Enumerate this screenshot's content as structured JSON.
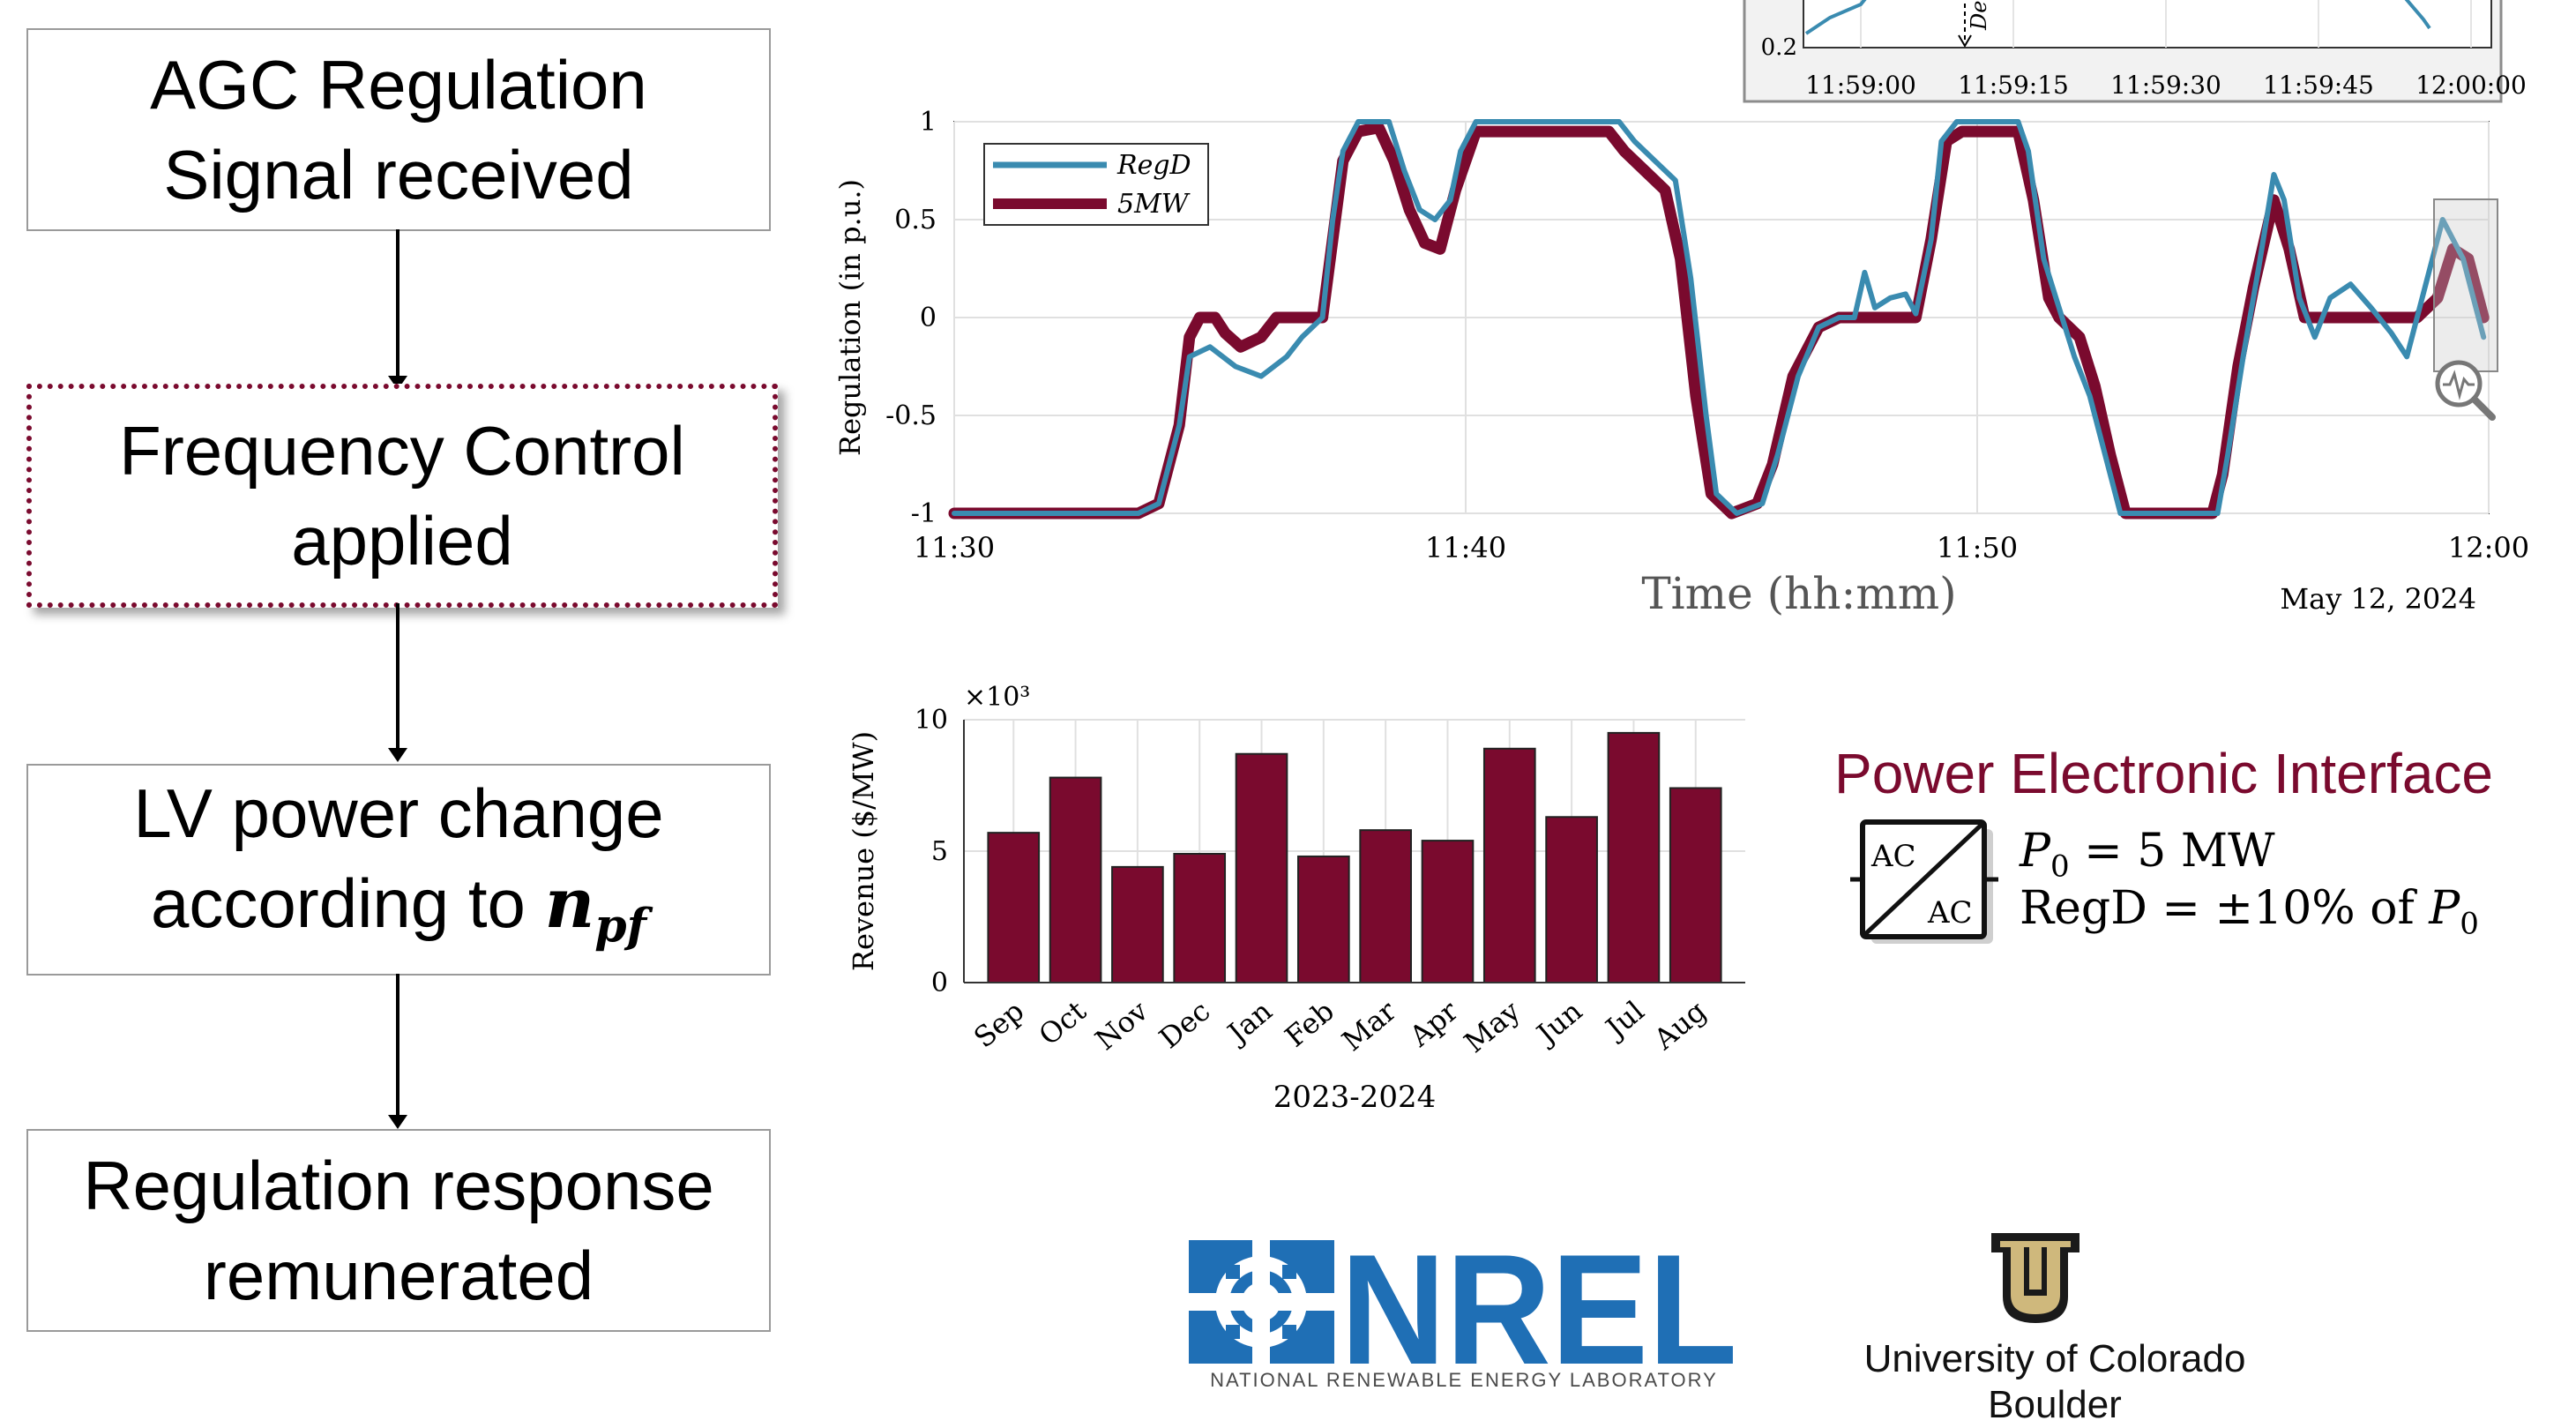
{
  "flowchart": {
    "steps": [
      {
        "line1": "AGC Regulation",
        "line2": "Signal received"
      },
      {
        "line1": "Frequency Control",
        "line2": "applied"
      },
      {
        "line1": "LV power change",
        "line2": "according to ",
        "math": "n",
        "math_sub": "pf"
      },
      {
        "line1": "Regulation response",
        "line2": "remunerated"
      }
    ]
  },
  "chart_data": [
    {
      "type": "line",
      "ylabel": "Regulation (in p.u.)",
      "xlabel": "Time (hh:mm)",
      "date_label": "May 12, 2024",
      "x_ticks": [
        "11:30",
        "11:40",
        "11:50",
        "12:00"
      ],
      "y_ticks": [
        "-1",
        "-0.5",
        "0",
        "0.5",
        "1"
      ],
      "ylim": [
        -1,
        1
      ],
      "xlim_minutes": [
        0,
        30
      ],
      "grid": true,
      "legend_position": "top-left",
      "series": [
        {
          "name": "RegD",
          "color": "#3a8bb0",
          "points": [
            [
              0,
              -1
            ],
            [
              3.6,
              -1
            ],
            [
              4,
              -0.95
            ],
            [
              4.4,
              -0.55
            ],
            [
              4.6,
              -0.2
            ],
            [
              5,
              -0.15
            ],
            [
              5.5,
              -0.25
            ],
            [
              6,
              -0.3
            ],
            [
              6.5,
              -0.2
            ],
            [
              6.8,
              -0.1
            ],
            [
              7.2,
              0
            ],
            [
              7.4,
              0.5
            ],
            [
              7.6,
              0.85
            ],
            [
              7.9,
              1
            ],
            [
              8.5,
              1
            ],
            [
              8.8,
              0.75
            ],
            [
              9.1,
              0.55
            ],
            [
              9.4,
              0.5
            ],
            [
              9.7,
              0.6
            ],
            [
              9.9,
              0.85
            ],
            [
              10.2,
              1
            ],
            [
              13,
              1
            ],
            [
              13.3,
              0.9
            ],
            [
              13.7,
              0.8
            ],
            [
              14.1,
              0.7
            ],
            [
              14.4,
              0.2
            ],
            [
              14.7,
              -0.5
            ],
            [
              14.9,
              -0.9
            ],
            [
              15.3,
              -1
            ],
            [
              15.8,
              -0.95
            ],
            [
              16.1,
              -0.7
            ],
            [
              16.5,
              -0.3
            ],
            [
              16.9,
              -0.05
            ],
            [
              17.3,
              0
            ],
            [
              17.6,
              0
            ],
            [
              17.8,
              0.23
            ],
            [
              18,
              0.05
            ],
            [
              18.3,
              0.1
            ],
            [
              18.6,
              0.12
            ],
            [
              18.8,
              0.02
            ],
            [
              19.1,
              0.4
            ],
            [
              19.3,
              0.9
            ],
            [
              19.6,
              1
            ],
            [
              20.8,
              1
            ],
            [
              21,
              0.85
            ],
            [
              21.3,
              0.3
            ],
            [
              21.6,
              0.05
            ],
            [
              21.9,
              -0.2
            ],
            [
              22.2,
              -0.4
            ],
            [
              22.5,
              -0.7
            ],
            [
              22.8,
              -1
            ],
            [
              24.7,
              -1
            ],
            [
              24.9,
              -0.7
            ],
            [
              25.2,
              -0.2
            ],
            [
              25.5,
              0.25
            ],
            [
              25.8,
              0.73
            ],
            [
              26,
              0.6
            ],
            [
              26.3,
              0.1
            ],
            [
              26.6,
              -0.1
            ],
            [
              26.9,
              0.1
            ],
            [
              27.3,
              0.17
            ],
            [
              27.7,
              0.05
            ],
            [
              28.1,
              -0.08
            ],
            [
              28.4,
              -0.2
            ],
            [
              28.7,
              0.1
            ],
            [
              29.1,
              0.5
            ],
            [
              29.5,
              0.3
            ],
            [
              29.9,
              -0.1
            ]
          ]
        },
        {
          "name": "5MW",
          "color": "#7a0a2e",
          "points": [
            [
              0,
              -1
            ],
            [
              3.6,
              -1
            ],
            [
              4,
              -0.95
            ],
            [
              4.4,
              -0.55
            ],
            [
              4.6,
              -0.1
            ],
            [
              4.8,
              0
            ],
            [
              5.1,
              0
            ],
            [
              5.3,
              -0.08
            ],
            [
              5.6,
              -0.15
            ],
            [
              6,
              -0.1
            ],
            [
              6.3,
              0
            ],
            [
              7.2,
              0
            ],
            [
              7.4,
              0.4
            ],
            [
              7.6,
              0.8
            ],
            [
              7.9,
              0.95
            ],
            [
              8.3,
              0.97
            ],
            [
              8.6,
              0.8
            ],
            [
              8.9,
              0.55
            ],
            [
              9.2,
              0.38
            ],
            [
              9.5,
              0.35
            ],
            [
              9.8,
              0.65
            ],
            [
              10.2,
              0.95
            ],
            [
              12.8,
              0.95
            ],
            [
              13.1,
              0.85
            ],
            [
              13.5,
              0.75
            ],
            [
              13.9,
              0.65
            ],
            [
              14.2,
              0.3
            ],
            [
              14.5,
              -0.4
            ],
            [
              14.8,
              -0.9
            ],
            [
              15.2,
              -1
            ],
            [
              15.7,
              -0.95
            ],
            [
              16,
              -0.75
            ],
            [
              16.4,
              -0.3
            ],
            [
              16.9,
              -0.05
            ],
            [
              17.3,
              0
            ],
            [
              18.8,
              0
            ],
            [
              19.1,
              0.4
            ],
            [
              19.4,
              0.9
            ],
            [
              19.7,
              0.95
            ],
            [
              20.8,
              0.95
            ],
            [
              21.1,
              0.6
            ],
            [
              21.4,
              0.1
            ],
            [
              21.6,
              0
            ],
            [
              22,
              -0.1
            ],
            [
              22.3,
              -0.35
            ],
            [
              22.6,
              -0.7
            ],
            [
              22.9,
              -1
            ],
            [
              24.6,
              -1
            ],
            [
              24.8,
              -0.8
            ],
            [
              25.1,
              -0.25
            ],
            [
              25.4,
              0.15
            ],
            [
              25.8,
              0.6
            ],
            [
              26.1,
              0.35
            ],
            [
              26.4,
              0
            ],
            [
              28.6,
              0
            ],
            [
              29,
              0.1
            ],
            [
              29.3,
              0.35
            ],
            [
              29.6,
              0.3
            ],
            [
              29.9,
              0
            ]
          ]
        }
      ]
    },
    {
      "type": "line",
      "x_ticks": [
        "11:59:00",
        "11:59:15",
        "11:59:30",
        "11:59:45",
        "12:00:00"
      ],
      "y_ticks": [
        "0.2"
      ],
      "annotation": "De",
      "series": [
        {
          "name": "RegD",
          "color": "#3a8bb0"
        }
      ]
    },
    {
      "type": "bar",
      "ylabel": "Revenue ($/MW)",
      "xlabel": "2023-2024",
      "multiplier": "×10³",
      "y_ticks": [
        "0",
        "5",
        "10"
      ],
      "ylim": [
        0,
        10
      ],
      "grid": true,
      "bar_color": "#7a0a2e",
      "categories": [
        "Sep",
        "Oct",
        "Nov",
        "Dec",
        "Jan",
        "Feb",
        "Mar",
        "Apr",
        "May",
        "Jun",
        "Jul",
        "Aug"
      ],
      "values": [
        5.7,
        7.8,
        4.4,
        4.9,
        8.7,
        4.8,
        5.8,
        5.4,
        8.9,
        6.3,
        9.5,
        7.4
      ]
    }
  ],
  "power_electronic": {
    "title": "Power Electronic Interface",
    "symbol_top": "AC",
    "symbol_bottom": "AC",
    "line1_var": "P",
    "line1_sub": "0",
    "line1_rest": " = 5 MW",
    "line2_text": "RegD = ±10% of ",
    "line2_var": "P",
    "line2_sub": "0"
  },
  "logos": {
    "nrel_name": "NREL",
    "nrel_sub": "NATIONAL RENEWABLE ENERGY LABORATORY",
    "cu_line1": "University of Colorado",
    "cu_line2": "Boulder"
  }
}
